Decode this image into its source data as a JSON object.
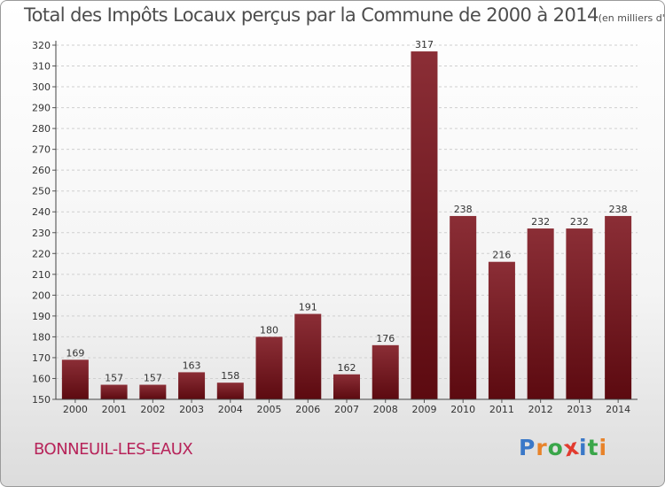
{
  "header": {
    "title": "Total des Impôts Locaux perçus par la Commune de 2000 à 2014",
    "unit": "(en milliers d'€)"
  },
  "footer": {
    "city": "BONNEUIL-LES-EAUX",
    "logo_letters": [
      "P",
      "r",
      "o",
      "x",
      "i",
      "t",
      "i"
    ],
    "logo_colors": [
      "#3a78c8",
      "#e8832a",
      "#3aa64a",
      "#e23b2f",
      "#3a78c8",
      "#3aa64a",
      "#e8832a"
    ]
  },
  "chart_data": {
    "type": "bar",
    "categories": [
      "2000",
      "2001",
      "2002",
      "2003",
      "2004",
      "2005",
      "2006",
      "2007",
      "2008",
      "2009",
      "2010",
      "2011",
      "2012",
      "2013",
      "2014"
    ],
    "values": [
      169,
      157,
      157,
      163,
      158,
      180,
      191,
      162,
      176,
      317,
      238,
      216,
      232,
      232,
      238
    ],
    "title": "Total des Impôts Locaux perçus par la Commune de 2000 à 2014",
    "ylim": [
      150,
      320
    ],
    "yticks": [
      150,
      160,
      170,
      180,
      190,
      200,
      210,
      220,
      230,
      240,
      250,
      260,
      270,
      280,
      290,
      300,
      310,
      320
    ],
    "grid": true,
    "bar_color_top": "#8b2e36",
    "bar_color_bottom": "#5c0a10"
  }
}
